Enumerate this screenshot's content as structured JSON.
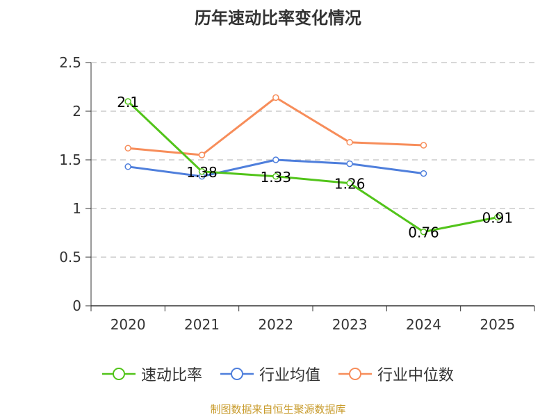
{
  "chart_data": {
    "type": "line",
    "title": "历年速动比率变化情况",
    "categories": [
      "2020",
      "2021",
      "2022",
      "2023",
      "2024",
      "2025"
    ],
    "y_ticks": [
      "0",
      "0.5",
      "1",
      "1.5",
      "2",
      "2.5"
    ],
    "ylim": [
      0,
      2.5
    ],
    "grid": true,
    "legend_position": "bottom",
    "series": [
      {
        "name": "速动比率",
        "color": "#52c41a",
        "values": [
          2.1,
          1.38,
          1.33,
          1.26,
          0.76,
          0.91
        ],
        "labels": [
          "2.1",
          "1.38",
          "1.33",
          "1.26",
          "0.76",
          "0.91"
        ]
      },
      {
        "name": "行业均值",
        "color": "#4f7fdc",
        "values": [
          1.43,
          1.33,
          1.5,
          1.46,
          1.36,
          null
        ]
      },
      {
        "name": "行业中位数",
        "color": "#f78d5a",
        "values": [
          1.62,
          1.55,
          2.14,
          1.68,
          1.65,
          null
        ]
      }
    ]
  },
  "source": "制图数据来自恒生聚源数据库"
}
